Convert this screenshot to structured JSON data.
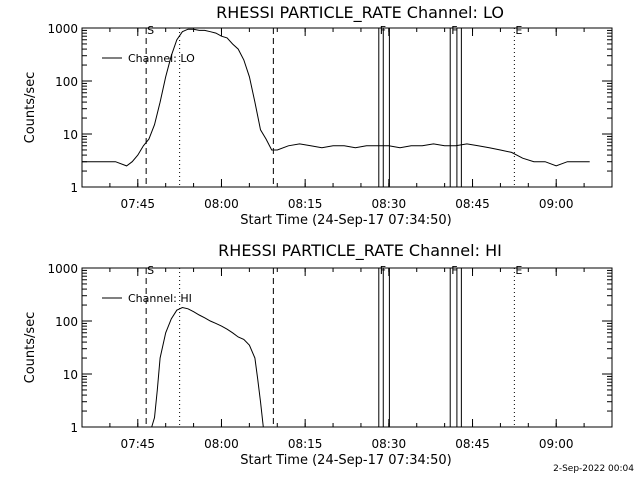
{
  "footer_timestamp": "2-Sep-2022 00:04",
  "chart_data": [
    {
      "type": "line",
      "title": "RHESSI PARTICLE_RATE Channel: LO",
      "xlabel": "Start Time (24-Sep-17 07:34:50)",
      "ylabel": "Counts/sec",
      "yscale": "log",
      "ylim": [
        1,
        1000
      ],
      "xlim": [
        "07:35",
        "09:10"
      ],
      "xticks": [
        "07:45",
        "08:00",
        "08:15",
        "08:30",
        "08:45",
        "09:00"
      ],
      "yticks": [
        "1",
        "10",
        "100",
        "1000"
      ],
      "legend": "top-left",
      "series": [
        {
          "name": "Channel: LO",
          "x": [
            "07:35",
            "07:37",
            "07:39",
            "07:41",
            "07:43",
            "07:44",
            "07:45",
            "07:46",
            "07:47",
            "07:48",
            "07:49",
            "07:50",
            "07:51",
            "07:52",
            "07:53",
            "07:54",
            "07:55",
            "07:56",
            "07:57",
            "07:58",
            "07:59",
            "08:00",
            "08:01",
            "08:02",
            "08:03",
            "08:04",
            "08:05",
            "08:06",
            "08:07",
            "08:08",
            "08:09",
            "08:10",
            "08:12",
            "08:14",
            "08:16",
            "08:18",
            "08:20",
            "08:22",
            "08:24",
            "08:26",
            "08:28",
            "08:30",
            "08:32",
            "08:34",
            "08:36",
            "08:38",
            "08:40",
            "08:42",
            "08:44",
            "08:46",
            "08:48",
            "08:50",
            "08:52",
            "08:54",
            "08:56",
            "08:58",
            "09:00",
            "09:02",
            "09:04",
            "09:06"
          ],
          "y": [
            3,
            3,
            3,
            3,
            2.5,
            3,
            4,
            6,
            8,
            15,
            40,
            120,
            300,
            600,
            850,
            950,
            950,
            900,
            900,
            850,
            800,
            700,
            650,
            500,
            400,
            250,
            120,
            40,
            12,
            8,
            5,
            5,
            6,
            6.5,
            6,
            5.5,
            6,
            6,
            5.5,
            6,
            6,
            6,
            5.5,
            6,
            6,
            6.5,
            6,
            6,
            6.5,
            6,
            5.5,
            5,
            4.5,
            3.5,
            3,
            3,
            2.5,
            3,
            3,
            3
          ]
        }
      ],
      "markers": [
        "S",
        "F",
        "F",
        "E"
      ]
    },
    {
      "type": "line",
      "title": "RHESSI PARTICLE_RATE Channel: HI",
      "xlabel": "Start Time (24-Sep-17 07:34:50)",
      "ylabel": "Counts/sec",
      "yscale": "log",
      "ylim": [
        1,
        1000
      ],
      "xlim": [
        "07:35",
        "09:10"
      ],
      "xticks": [
        "07:45",
        "08:00",
        "08:15",
        "08:30",
        "08:45",
        "09:00"
      ],
      "yticks": [
        "1",
        "10",
        "100",
        "1000"
      ],
      "legend": "top-left",
      "series": [
        {
          "name": "Channel: HI",
          "x": [
            "07:47.5",
            "07:48",
            "07:48.5",
            "07:49",
            "07:50",
            "07:51",
            "07:52",
            "07:53",
            "07:54",
            "07:55",
            "07:56",
            "07:57",
            "07:58",
            "07:59",
            "08:00",
            "08:01",
            "08:02",
            "08:03",
            "08:04",
            "08:05",
            "08:06",
            "08:06.5",
            "08:07",
            "08:07.5"
          ],
          "y": [
            1,
            1.5,
            5,
            20,
            60,
            110,
            160,
            180,
            170,
            150,
            130,
            115,
            100,
            90,
            80,
            70,
            60,
            50,
            45,
            35,
            20,
            8,
            3,
            1
          ]
        }
      ],
      "markers": [
        "S",
        "F",
        "F",
        "E"
      ]
    }
  ]
}
